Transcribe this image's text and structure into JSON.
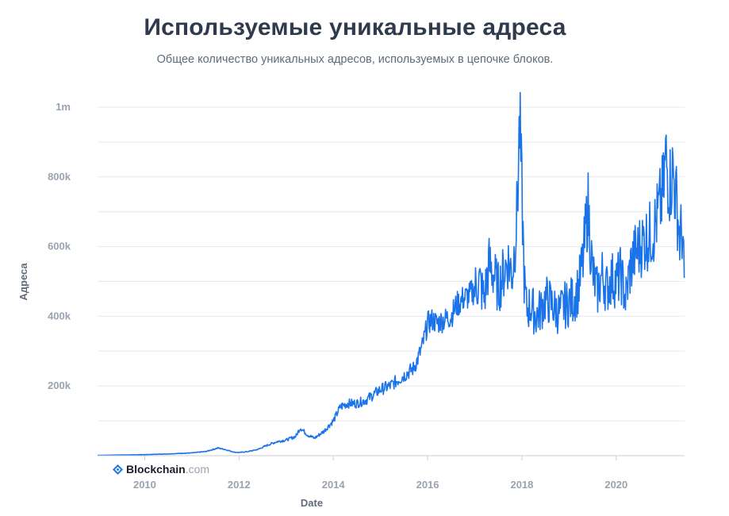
{
  "chart_data": {
    "type": "line",
    "title": "Используемые уникальные адреса",
    "subtitle": "Общее количество уникальных адресов, используемых в цепочке блоков.",
    "xlabel": "Date",
    "ylabel": "Адреса",
    "xlim": [
      2009.0,
      2021.45
    ],
    "ylim": [
      0,
      1000000
    ],
    "x_ticks": [
      2010,
      2012,
      2014,
      2016,
      2018,
      2020
    ],
    "x_tick_labels": [
      "2010",
      "2012",
      "2014",
      "2016",
      "2018",
      "2020"
    ],
    "y_ticks": [
      200000,
      400000,
      600000,
      800000,
      1000000
    ],
    "y_tick_labels": [
      "200k",
      "400k",
      "600k",
      "800k",
      "1m"
    ],
    "grid": true,
    "series": [
      {
        "color": "#1a73e8",
        "x": [
          2009.0,
          2009.5,
          2010.0,
          2010.5,
          2011.0,
          2011.3,
          2011.45,
          2011.55,
          2011.7,
          2011.9,
          2012.0,
          2012.2,
          2012.4,
          2012.6,
          2012.8,
          2013.0,
          2013.2,
          2013.3,
          2013.45,
          2013.6,
          2013.8,
          2013.9,
          2014.0,
          2014.15,
          2014.3,
          2014.5,
          2014.7,
          2014.9,
          2015.0,
          2015.2,
          2015.4,
          2015.6,
          2015.7,
          2015.8,
          2015.9,
          2016.0,
          2016.1,
          2016.2,
          2016.35,
          2016.5,
          2016.6,
          2016.75,
          2016.9,
          2017.0,
          2017.1,
          2017.2,
          2017.3,
          2017.4,
          2017.5,
          2017.6,
          2017.7,
          2017.8,
          2017.9,
          2017.95,
          2018.0,
          2018.05,
          2018.1,
          2018.2,
          2018.3,
          2018.4,
          2018.5,
          2018.6,
          2018.7,
          2018.8,
          2018.9,
          2019.0,
          2019.1,
          2019.2,
          2019.3,
          2019.4,
          2019.5,
          2019.6,
          2019.7,
          2019.8,
          2019.9,
          2020.0,
          2020.1,
          2020.2,
          2020.3,
          2020.4,
          2020.5,
          2020.6,
          2020.7,
          2020.8,
          2020.9,
          2021.0,
          2021.05,
          2021.1,
          2021.15,
          2021.2,
          2021.25,
          2021.3,
          2021.35,
          2021.4,
          2021.45
        ],
        "values": [
          1000,
          2000,
          3000,
          5000,
          8000,
          12000,
          18000,
          22000,
          18000,
          10000,
          9000,
          12000,
          18000,
          30000,
          40000,
          45000,
          55000,
          80000,
          60000,
          50000,
          70000,
          85000,
          100000,
          140000,
          150000,
          150000,
          160000,
          180000,
          190000,
          200000,
          220000,
          240000,
          250000,
          280000,
          320000,
          380000,
          390000,
          380000,
          390000,
          400000,
          430000,
          450000,
          460000,
          480000,
          500000,
          450000,
          550000,
          520000,
          480000,
          520000,
          560000,
          520000,
          700000,
          960000,
          750000,
          500000,
          420000,
          430000,
          400000,
          420000,
          450000,
          440000,
          420000,
          410000,
          430000,
          440000,
          450000,
          480000,
          560000,
          720000,
          520000,
          470000,
          520000,
          480000,
          510000,
          500000,
          520000,
          450000,
          540000,
          580000,
          600000,
          620000,
          630000,
          650000,
          700000,
          760000,
          860000,
          800000,
          780000,
          820000,
          760000,
          700000,
          620000,
          650000,
          470000
        ]
      }
    ]
  },
  "brand": {
    "name": "Blockchain",
    "tld": ".com"
  }
}
